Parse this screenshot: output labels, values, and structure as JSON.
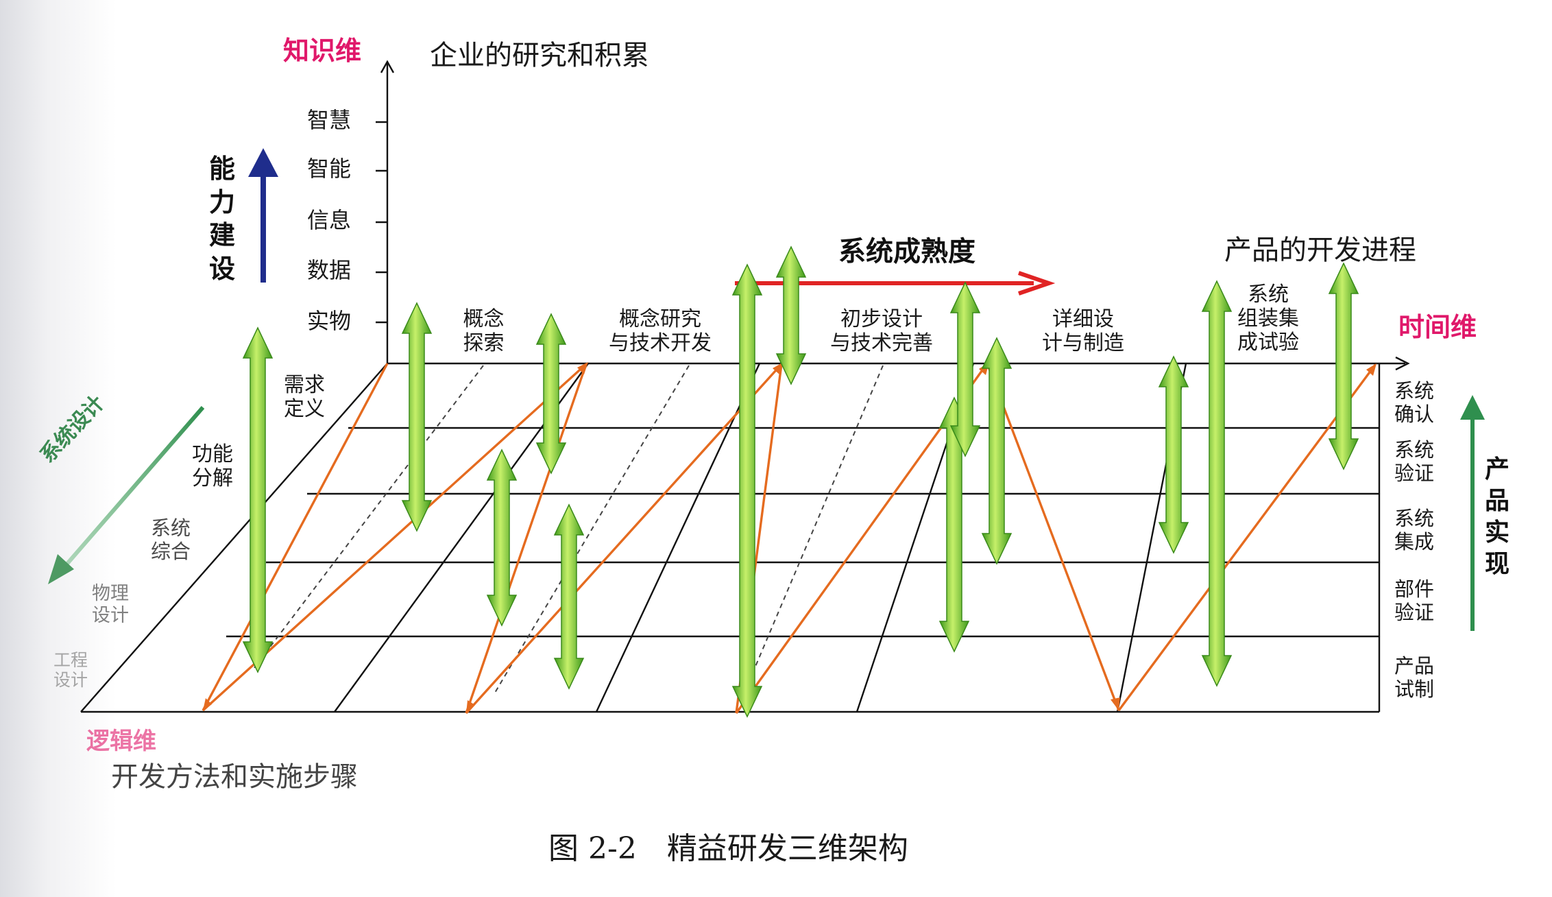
{
  "axes": {
    "knowledge": {
      "name": "知识维",
      "description": "企业的研究和积累",
      "levels": [
        "智慧",
        "智能",
        "信息",
        "数据",
        "实物"
      ],
      "capability": "能力建设"
    },
    "time": {
      "name": "时间维",
      "description": "产品的开发进程",
      "stages": [
        "概念\n探索",
        "概念研究\n与技术开发",
        "初步设计\n与技术完善",
        "详细设\n计与制造",
        "系统\n组装集\n成试验"
      ],
      "levels": [
        "系统\n确认",
        "系统\n验证",
        "系统\n集成",
        "部件\n验证",
        "产品\n试制"
      ],
      "realization": "产品实现"
    },
    "logic": {
      "name": "逻辑维",
      "description": "开发方法和实施步骤",
      "steps": [
        "需求\n定义",
        "功能\n分解",
        "系统\n综合",
        "物理\n设计",
        "工程\n设计"
      ],
      "design_arrow": "系统设计"
    }
  },
  "maturity_label": "系统成熟度",
  "caption": "图 2-2　精益研发三维架构",
  "colors": {
    "pink": "#e0186a",
    "navy": "#1f2d8c",
    "red": "#e02424",
    "green_arrow": "#2f8f4e",
    "orange": "#e56b1f",
    "green_light": "#c6f06a",
    "green_dark": "#3f9a1c"
  },
  "icons": {
    "capability_arrow": "arrow-up-icon",
    "maturity_arrow": "arrow-right-icon",
    "realization_arrow": "arrow-up-icon",
    "design_arrow": "arrow-down-left-icon",
    "green_arrows": "double-arrow-icon"
  }
}
